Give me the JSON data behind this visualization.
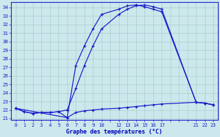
{
  "bg_color": "#cce8ec",
  "line_color": "#1a1acc",
  "grid_color": "#aacccc",
  "xlabel": "Graphe des températures (°C)",
  "xlabel_color": "#0000bb",
  "ylabel_ticks": [
    21,
    22,
    23,
    24,
    25,
    26,
    27,
    28,
    29,
    30,
    31,
    32,
    33,
    34
  ],
  "hour_labels": [
    "0",
    "1",
    "2",
    "3",
    "4",
    "5",
    "6",
    "7",
    "8",
    "9",
    "10",
    "",
    "12",
    "13",
    "14",
    "15",
    "16",
    "17",
    "",
    "",
    "",
    "21",
    "22",
    "23"
  ],
  "hours": [
    0,
    1,
    2,
    3,
    4,
    5,
    6,
    7,
    8,
    9,
    10,
    11,
    12,
    13,
    14,
    15,
    16,
    17,
    18,
    19,
    20,
    21,
    22,
    23
  ],
  "line_min_h": [
    0,
    1,
    2,
    3,
    4,
    5,
    6,
    7,
    8,
    9,
    10,
    12,
    13,
    14,
    15,
    16,
    17,
    21,
    22,
    23
  ],
  "line_min_y": [
    22.2,
    21.8,
    21.6,
    21.7,
    21.7,
    21.8,
    21.1,
    21.7,
    21.9,
    22.0,
    22.1,
    22.2,
    22.3,
    22.4,
    22.5,
    22.6,
    22.7,
    22.9,
    22.8,
    22.6
  ],
  "line_max_h": [
    0,
    1,
    2,
    3,
    4,
    5,
    6,
    7,
    8,
    9,
    10,
    12,
    13,
    14,
    15,
    16,
    17,
    21,
    22,
    23
  ],
  "line_max_y": [
    22.2,
    21.8,
    21.6,
    21.7,
    21.7,
    21.8,
    22.0,
    24.5,
    27.2,
    29.5,
    31.5,
    33.2,
    33.8,
    34.2,
    34.3,
    34.1,
    33.8,
    22.9,
    22.8,
    22.6
  ],
  "line_tri_h": [
    0,
    6,
    7,
    8,
    9,
    10,
    12,
    13,
    14,
    15,
    16,
    17,
    21,
    22,
    23
  ],
  "line_tri_y": [
    22.2,
    21.1,
    27.2,
    29.5,
    31.5,
    33.2,
    33.8,
    34.2,
    34.3,
    34.1,
    33.8,
    33.5,
    22.9,
    22.8,
    22.6
  ],
  "ylim": [
    20.8,
    34.6
  ],
  "xlim": [
    -0.5,
    23.5
  ]
}
